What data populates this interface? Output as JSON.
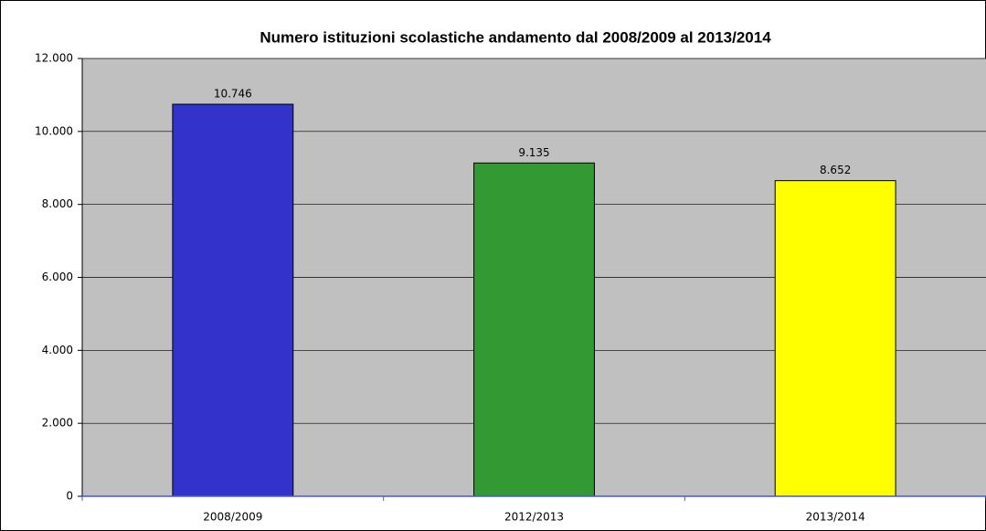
{
  "chart_data": {
    "type": "bar",
    "title": "Numero istituzioni scolastiche andamento dal 2008/2009 al 2013/2014",
    "categories": [
      "2008/2009",
      "2012/2013",
      "2013/2014"
    ],
    "values": [
      10746,
      9135,
      8652
    ],
    "value_labels": [
      "10.746",
      "9.135",
      "8.652"
    ],
    "colors": [
      "#3333cc",
      "#339933",
      "#ffff00"
    ],
    "ylim": [
      0,
      12000
    ],
    "yticks": [
      0,
      {
        "value": 2000,
        "label": "2.000"
      },
      {
        "value": 4000,
        "label": "4.000"
      },
      {
        "value": 6000,
        "label": "6.000"
      },
      {
        "value": 8000,
        "label": "8.000"
      },
      {
        "value": 10000,
        "label": "10.000"
      },
      {
        "value": 12000,
        "label": "12.000"
      }
    ],
    "grid": true
  }
}
